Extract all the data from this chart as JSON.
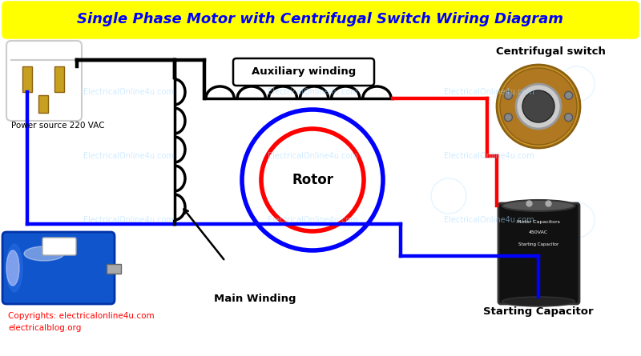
{
  "title": "Single Phase Motor with Centrifugal Switch Wiring Diagram",
  "title_color": "#0000FF",
  "title_bg": "#FFFF00",
  "bg_color": "#FFFFFF",
  "labels": {
    "auxiliary_winding": "Auxiliary winding",
    "main_winding": "Main Winding",
    "rotor": "Rotor",
    "power_source": "Power source 220 VAC",
    "centrifugal_switch": "Centrifugal switch",
    "starting_capacitor": "Starting Capacitor",
    "copyright1": "Copyrights: electricalonline4u.com",
    "copyright2": "electricalblog.org"
  },
  "colors": {
    "black": "#000000",
    "blue": "#0000FF",
    "red": "#FF0000",
    "white": "#FFFFFF",
    "yellow": "#FFFF00",
    "light_blue": "#AADDFF",
    "brown": "#8B4513"
  },
  "watermark_text": "ElectricalOnline4u.com",
  "watermark_color": "#AADDFF"
}
